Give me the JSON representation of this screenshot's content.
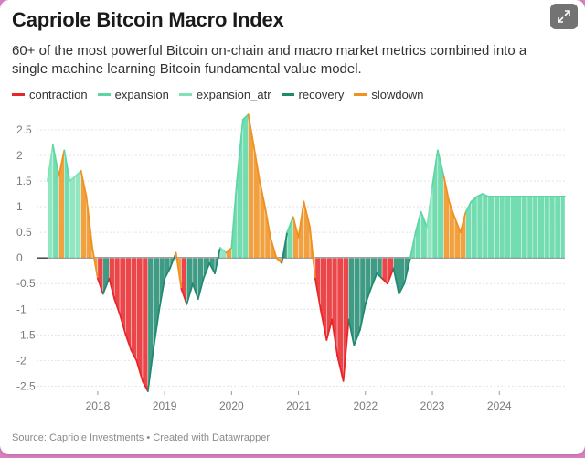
{
  "header": {
    "title": "Capriole Bitcoin Macro Index",
    "subtitle": "60+ of the most powerful Bitcoin on-chain and macro market metrics combined into a single machine learning Bitcoin fundamental value model."
  },
  "legend": [
    {
      "label": "contraction",
      "color": "#e8262a"
    },
    {
      "label": "expansion",
      "color": "#5cd6a3"
    },
    {
      "label": "expansion_atr",
      "color": "#7fe3b7"
    },
    {
      "label": "recovery",
      "color": "#1f8a70"
    },
    {
      "label": "slowdown",
      "color": "#f0901e"
    }
  ],
  "footer": {
    "source": "Source: Capriole Investments • Created with Datawrapper"
  },
  "expand_icon": "expand-arrows-icon",
  "chart_data": {
    "type": "area",
    "title": "Capriole Bitcoin Macro Index",
    "xlim": [
      2017.25,
      2024.98
    ],
    "ylim": [
      -2.6,
      2.75
    ],
    "y_ticks": [
      "2.5",
      "2",
      "1.5",
      "1",
      "0.5",
      "0",
      "-0.5",
      "-1",
      "-1.5",
      "-2",
      "-2.5"
    ],
    "y_tick_values": [
      2.5,
      2,
      1.5,
      1,
      0.5,
      0,
      -0.5,
      -1,
      -1.5,
      -2,
      -2.5
    ],
    "x_ticks": [
      "2018",
      "2019",
      "2020",
      "2021",
      "2022",
      "2023",
      "2024"
    ],
    "x_tick_values": [
      2018,
      2019,
      2020,
      2021,
      2022,
      2023,
      2024
    ],
    "grid": true,
    "legend_position": "top-left",
    "colors": {
      "contraction": "#e8262a",
      "expansion": "#5cd6a3",
      "expansion_atr": "#7fe3b7",
      "recovery": "#1f8a70",
      "slowdown": "#f0901e"
    },
    "series": [
      {
        "name": "Macro Index",
        "x": [
          2017.25,
          2017.33,
          2017.42,
          2017.5,
          2017.58,
          2017.67,
          2017.75,
          2017.83,
          2017.92,
          2018.0,
          2018.08,
          2018.17,
          2018.25,
          2018.33,
          2018.42,
          2018.5,
          2018.58,
          2018.67,
          2018.75,
          2018.83,
          2018.92,
          2019.0,
          2019.08,
          2019.17,
          2019.25,
          2019.33,
          2019.42,
          2019.5,
          2019.58,
          2019.67,
          2019.75,
          2019.83,
          2019.92,
          2020.0,
          2020.08,
          2020.17,
          2020.25,
          2020.33,
          2020.42,
          2020.5,
          2020.58,
          2020.67,
          2020.75,
          2020.83,
          2020.92,
          2021.0,
          2021.08,
          2021.17,
          2021.25,
          2021.33,
          2021.42,
          2021.5,
          2021.58,
          2021.67,
          2021.75,
          2021.83,
          2021.92,
          2022.0,
          2022.08,
          2022.17,
          2022.25,
          2022.33,
          2022.42,
          2022.5,
          2022.58,
          2022.67,
          2022.75,
          2022.83,
          2022.92,
          2023.0,
          2023.08,
          2023.17,
          2023.25,
          2023.33,
          2023.42,
          2023.5,
          2023.58,
          2023.67,
          2023.75,
          2023.83,
          2023.92,
          2024.0,
          2024.08,
          2024.17,
          2024.25,
          2024.33,
          2024.42,
          2024.5,
          2024.58,
          2024.67,
          2024.75,
          2024.83,
          2024.92,
          2024.98
        ],
        "y": [
          1.5,
          2.2,
          1.6,
          2.1,
          1.5,
          1.6,
          1.7,
          1.2,
          0.2,
          -0.4,
          -0.7,
          -0.4,
          -0.8,
          -1.1,
          -1.5,
          -1.8,
          -2.0,
          -2.4,
          -2.6,
          -1.8,
          -1.0,
          -0.4,
          -0.2,
          0.1,
          -0.6,
          -0.9,
          -0.5,
          -0.8,
          -0.4,
          -0.1,
          -0.3,
          0.2,
          0.1,
          0.2,
          1.5,
          2.7,
          2.8,
          2.2,
          1.5,
          1.0,
          0.4,
          0.0,
          -0.1,
          0.5,
          0.8,
          0.4,
          1.1,
          0.6,
          -0.4,
          -1.0,
          -1.6,
          -1.2,
          -1.9,
          -2.4,
          -1.2,
          -1.7,
          -1.4,
          -0.9,
          -0.6,
          -0.3,
          -0.4,
          -0.5,
          -0.2,
          -0.7,
          -0.5,
          0.0,
          0.5,
          0.9,
          0.6,
          1.4,
          2.1,
          1.6,
          1.1,
          0.8,
          0.5,
          0.9,
          1.1,
          1.2,
          1.25,
          1.2,
          1.2,
          1.2,
          1.2,
          1.2,
          1.2,
          1.2,
          1.2,
          1.2,
          1.2,
          1.2,
          1.2,
          1.2,
          1.2,
          1.2
        ],
        "phases": [
          "expansion_atr",
          "expansion",
          "slowdown",
          "expansion",
          "expansion_atr",
          "expansion_atr",
          "slowdown",
          "slowdown",
          "slowdown",
          "contraction",
          "recovery",
          "contraction",
          "contraction",
          "contraction",
          "contraction",
          "contraction",
          "contraction",
          "contraction",
          "recovery",
          "recovery",
          "recovery",
          "recovery",
          "recovery",
          "slowdown",
          "contraction",
          "recovery",
          "recovery",
          "recovery",
          "recovery",
          "recovery",
          "recovery",
          "expansion_atr",
          "slowdown",
          "expansion",
          "expansion",
          "expansion",
          "slowdown",
          "slowdown",
          "slowdown",
          "slowdown",
          "slowdown",
          "slowdown",
          "recovery",
          "expansion",
          "slowdown",
          "slowdown",
          "slowdown",
          "slowdown",
          "contraction",
          "contraction",
          "contraction",
          "contraction",
          "contraction",
          "contraction",
          "recovery",
          "recovery",
          "recovery",
          "recovery",
          "recovery",
          "recovery",
          "contraction",
          "contraction",
          "recovery",
          "recovery",
          "recovery",
          "expansion",
          "expansion",
          "expansion",
          "expansion_atr",
          "expansion",
          "expansion",
          "slowdown",
          "slowdown",
          "slowdown",
          "slowdown",
          "expansion",
          "expansion",
          "expansion",
          "expansion",
          "expansion",
          "expansion",
          "expansion",
          "expansion",
          "expansion",
          "expansion",
          "expansion",
          "expansion",
          "expansion",
          "expansion",
          "expansion",
          "expansion",
          "expansion",
          "expansion",
          "expansion"
        ]
      }
    ]
  }
}
